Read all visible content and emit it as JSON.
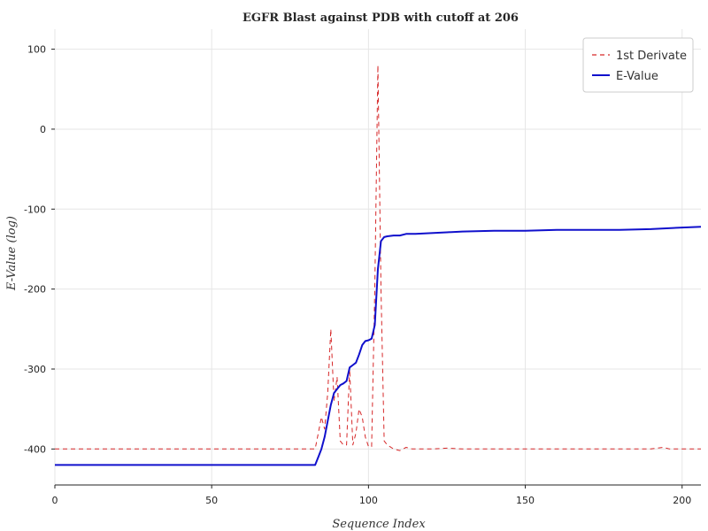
{
  "chart_data": {
    "type": "line",
    "title": "EGFR Blast against PDB with cutoff at 206",
    "xlabel": "Sequence Index",
    "ylabel": "E-Value (log)",
    "xlim": [
      0,
      206
    ],
    "ylim": [
      -445,
      125
    ],
    "x_ticks": [
      0,
      50,
      100,
      150,
      200
    ],
    "y_ticks": [
      100,
      0,
      -100,
      -200,
      -300,
      -400
    ],
    "x_tick_labels": [
      "0",
      "50",
      "100",
      "150",
      "200"
    ],
    "y_tick_labels": [
      "100",
      "0",
      "-100",
      "-200",
      "-300",
      "-400"
    ],
    "grid": true,
    "legend_position": "top-right",
    "series": [
      {
        "name": "1st Derivate",
        "style": "dashed",
        "color": "#d62728",
        "x": [
          0,
          80,
          83,
          84,
          85,
          86,
          87,
          88,
          89,
          90,
          91,
          92,
          93,
          94,
          95,
          96,
          97,
          98,
          99,
          100,
          101,
          102,
          103,
          104,
          105,
          106,
          108,
          110,
          112,
          114,
          120,
          125,
          130,
          140,
          150,
          160,
          170,
          180,
          188,
          190,
          192,
          194,
          196,
          200,
          206
        ],
        "y": [
          -400,
          -400,
          -400,
          -380,
          -360,
          -375,
          -330,
          -250,
          -340,
          -310,
          -390,
          -395,
          -395,
          -300,
          -395,
          -380,
          -350,
          -360,
          -385,
          -397,
          -397,
          -200,
          80,
          -200,
          -390,
          -395,
          -400,
          -402,
          -398,
          -400,
          -400,
          -399,
          -400,
          -400,
          -400,
          -400,
          -400,
          -400,
          -400,
          -400,
          -399,
          -398,
          -400,
          -400,
          -400
        ]
      },
      {
        "name": "E-Value",
        "style": "solid",
        "color": "#1010cc",
        "x": [
          0,
          82,
          83,
          84,
          85,
          86,
          87,
          88,
          89,
          90,
          91,
          92,
          93,
          94,
          95,
          96,
          97,
          98,
          99,
          100,
          101,
          102,
          103,
          104,
          105,
          106,
          108,
          110,
          112,
          115,
          120,
          125,
          130,
          140,
          150,
          160,
          170,
          180,
          190,
          195,
          200,
          206
        ],
        "y": [
          -420,
          -420,
          -420,
          -410,
          -400,
          -385,
          -365,
          -345,
          -330,
          -325,
          -320,
          -318,
          -315,
          -298,
          -295,
          -292,
          -282,
          -270,
          -265,
          -264,
          -262,
          -245,
          -175,
          -140,
          -135,
          -134,
          -133,
          -133,
          -131,
          -131,
          -130,
          -129,
          -128,
          -127,
          -127,
          -126,
          -126,
          -126,
          -125,
          -124,
          -123,
          -122
        ]
      }
    ]
  }
}
